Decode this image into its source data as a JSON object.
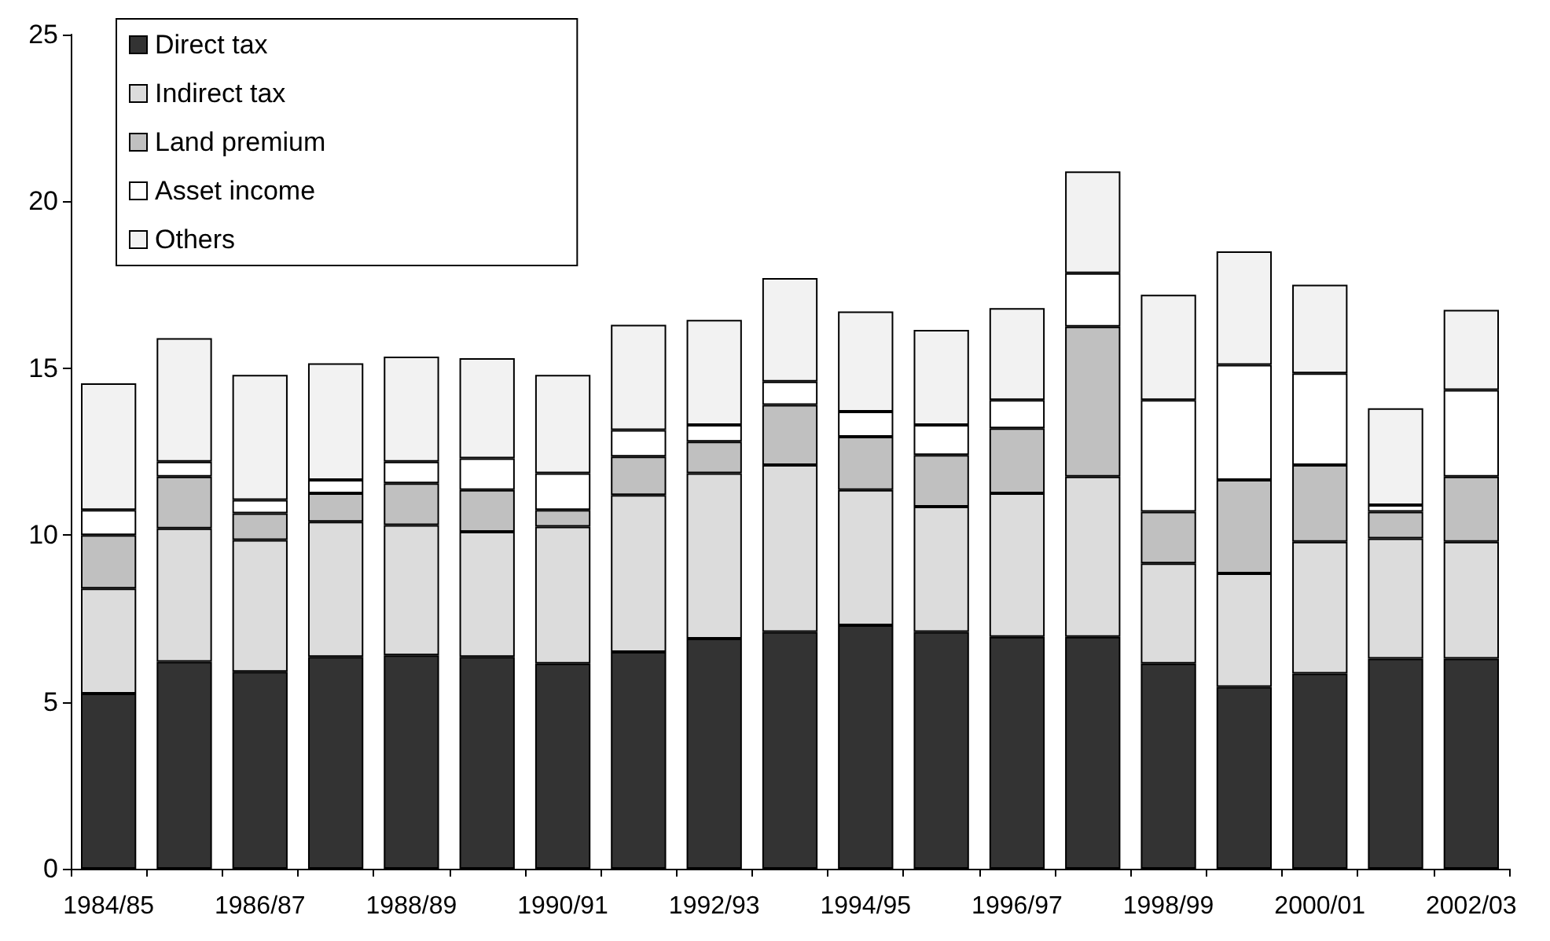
{
  "chart_data": {
    "type": "bar",
    "stacked": true,
    "categories": [
      "1984/85",
      null,
      "1986/87",
      null,
      "1988/89",
      null,
      "1990/91",
      null,
      "1992/93",
      null,
      "1994/95",
      null,
      "1996/97",
      null,
      "1998/99",
      null,
      "2000/01",
      null,
      "2002/03"
    ],
    "series": [
      {
        "name": "Direct tax",
        "color": "#333333",
        "values": [
          5.25,
          6.2,
          5.9,
          6.35,
          6.4,
          6.35,
          6.15,
          6.5,
          6.9,
          7.1,
          7.3,
          7.1,
          6.95,
          6.95,
          6.15,
          5.45,
          5.85,
          6.3,
          6.3
        ]
      },
      {
        "name": "Indirect tax",
        "color": "#dcdcdc",
        "values": [
          3.15,
          4.0,
          3.95,
          4.05,
          3.9,
          3.75,
          4.1,
          4.7,
          4.95,
          5.0,
          4.05,
          3.75,
          4.3,
          4.8,
          3.0,
          3.4,
          3.95,
          3.6,
          3.5
        ]
      },
      {
        "name": "Land premium",
        "color": "#c0c0c0",
        "values": [
          1.6,
          1.55,
          0.8,
          0.85,
          1.25,
          1.25,
          0.5,
          1.15,
          0.95,
          1.8,
          1.6,
          1.55,
          1.95,
          4.5,
          1.55,
          2.8,
          2.3,
          0.8,
          1.95
        ]
      },
      {
        "name": "Asset income",
        "color": "#ffffff",
        "values": [
          0.75,
          0.45,
          0.4,
          0.4,
          0.65,
          0.95,
          1.1,
          0.8,
          0.5,
          0.7,
          0.75,
          0.9,
          0.85,
          1.6,
          3.35,
          3.45,
          2.75,
          0.2,
          2.6
        ]
      },
      {
        "name": "Others",
        "color": "#f2f2f2",
        "values": [
          3.8,
          3.7,
          3.75,
          3.5,
          3.15,
          3.0,
          2.95,
          3.15,
          3.15,
          3.1,
          3.0,
          2.85,
          2.75,
          3.05,
          3.15,
          3.4,
          2.65,
          2.9,
          2.4
        ]
      }
    ],
    "ylim": [
      0,
      25
    ],
    "yticks": [
      0,
      5,
      10,
      15,
      20,
      25
    ],
    "legend": "top left"
  }
}
